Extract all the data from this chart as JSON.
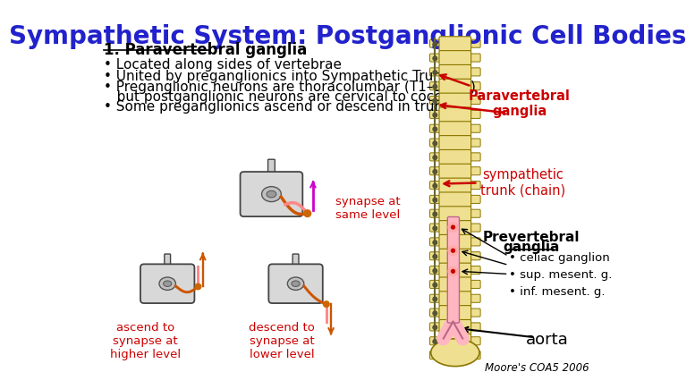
{
  "title": "Sympathetic System: Postganglionic Cell Bodies",
  "title_color": "#2222CC",
  "title_fontsize": 20,
  "bg_color": "#FFFFFF",
  "heading1": "1. Paravertebral ganglia",
  "bullets": [
    "• Located along sides of vertebrae",
    "• United by preganglionics into Sympathetic Trunk",
    "• Preganglionic neurons are thoracolumbar (T1–L2/L3)",
    "   but postganglionic neurons are cervical to coccyx",
    "• Some preganglionics ascend or descend in trunk"
  ],
  "bullet_y": [
    72,
    88,
    104,
    118,
    132
  ],
  "bullet_fontsize": 11,
  "label_paravertebral": "Paravertebral\nganglia",
  "label_sympathetic": "sympathetic\ntrunk (chain)",
  "label_prevertebral_title": "Prevertebral",
  "label_prevertebral_ganglia": "ganglia",
  "label_prevertebral_items": "• celiac ganglion\n• sup. mesent. g.\n• inf. mesent. g.",
  "label_aorta": "aorta",
  "label_synapse_same": "synapse at\nsame level",
  "label_ascend": "ascend to\nsynapse at\nhigher level",
  "label_descend": "descend to\nsynapse at\nlower level",
  "label_moore": "Moore's COA5 2006",
  "red_label_color": "#CC0000",
  "black_label_color": "#000000",
  "spine_bg": "#EEE090",
  "aorta_color": "#FFB6C1",
  "chain_color": "#666633",
  "orange_nerve": "#CC6600",
  "pink_nerve": "#FFAAAA"
}
